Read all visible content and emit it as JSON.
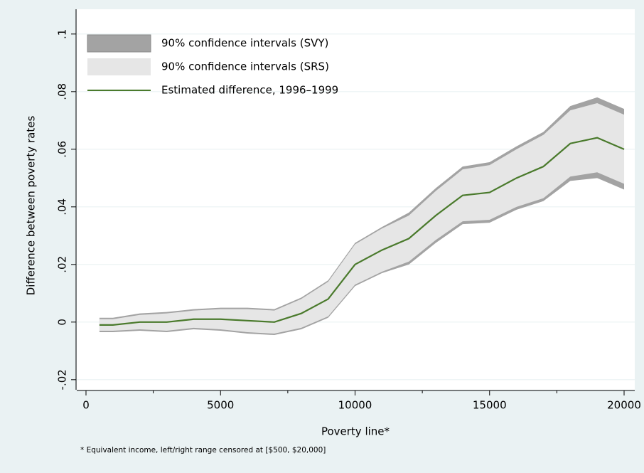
{
  "chart_data": {
    "type": "line",
    "x_label": "Poverty line*",
    "y_label": "Difference between poverty rates",
    "note": "* Equivalent income, left/right range censored at [$500, $20,000]",
    "x": [
      500,
      1000,
      2000,
      3000,
      4000,
      5000,
      6000,
      7000,
      8000,
      9000,
      10000,
      11000,
      12000,
      13000,
      14000,
      15000,
      16000,
      17000,
      18000,
      19000,
      20000
    ],
    "series": [
      {
        "name": "90% confidence intervals (SVY)",
        "kind": "band",
        "color": "#a3a3a3",
        "lower": [
          -0.0035,
          -0.0035,
          -0.003,
          -0.0035,
          -0.0025,
          -0.003,
          -0.004,
          -0.0045,
          -0.0025,
          0.0015,
          0.0125,
          0.017,
          0.02,
          0.0275,
          0.034,
          0.0345,
          0.039,
          0.042,
          0.049,
          0.05,
          0.046
        ],
        "upper": [
          0.0015,
          0.0015,
          0.003,
          0.0035,
          0.0045,
          0.005,
          0.005,
          0.0045,
          0.0085,
          0.0145,
          0.0275,
          0.033,
          0.038,
          0.0465,
          0.054,
          0.0555,
          0.061,
          0.066,
          0.075,
          0.078,
          0.074
        ]
      },
      {
        "name": "90% confidence intervals (SRS)",
        "kind": "band",
        "color": "#e6e6e6",
        "lower": [
          -0.003,
          -0.003,
          -0.0025,
          -0.003,
          -0.002,
          -0.0025,
          -0.0035,
          -0.004,
          -0.002,
          0.002,
          0.013,
          0.0175,
          0.021,
          0.0285,
          0.035,
          0.0355,
          0.04,
          0.043,
          0.0505,
          0.052,
          0.048
        ],
        "upper": [
          0.001,
          0.001,
          0.0025,
          0.003,
          0.004,
          0.0045,
          0.0045,
          0.004,
          0.008,
          0.014,
          0.027,
          0.0325,
          0.037,
          0.0455,
          0.053,
          0.0545,
          0.06,
          0.065,
          0.0735,
          0.076,
          0.072
        ]
      },
      {
        "name": "Estimated difference, 1996–1999",
        "kind": "line",
        "color": "#4a7a2c",
        "values": [
          -0.001,
          -0.001,
          0,
          0,
          0.001,
          0.001,
          0.0005,
          0,
          0.003,
          0.008,
          0.02,
          0.025,
          0.029,
          0.037,
          0.044,
          0.045,
          0.05,
          0.054,
          0.062,
          0.064,
          0.06
        ]
      }
    ],
    "xlim": [
      -343,
      20396
    ],
    "xticks": [
      0,
      5000,
      10000,
      15000,
      20000
    ],
    "xminorticks": [
      2500,
      7500,
      12500,
      17500
    ],
    "ylim": [
      -0.0235,
      0.1086
    ],
    "yticks": [
      {
        "value": -0.02,
        "label": "-.02"
      },
      0,
      {
        "value": 0.02,
        "label": ".02"
      },
      {
        "value": 0.04,
        "label": ".04"
      },
      {
        "value": 0.06,
        "label": ".06"
      },
      {
        "value": 0.08,
        "label": ".08"
      },
      {
        "value": 0.1,
        "label": ".1"
      }
    ],
    "grid": true
  }
}
